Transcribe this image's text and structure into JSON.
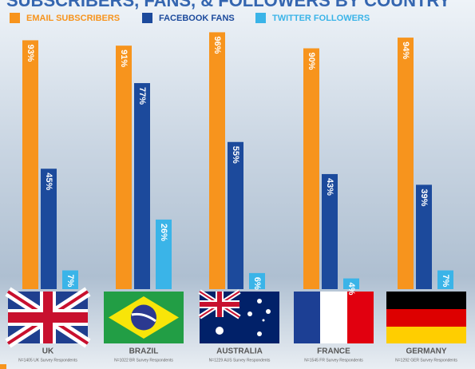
{
  "chart_data": {
    "type": "bar",
    "title": "SUBSCRIBERS, FANS, & FOLLOWERS BY COUNTRY",
    "categories": [
      "UK",
      "BRAZIL",
      "AUSTRALIA",
      "FRANCE",
      "GERMANY"
    ],
    "notes": [
      "N=1405 UK Survey Respondents",
      "N=1022 BR Survey Respondents",
      "N=1229 AUS Survey Respondents",
      "N=1545 FR Survey Respondents",
      "N=1292 GER Survey Respondents"
    ],
    "series": [
      {
        "name": "EMAIL SUBSCRIBERS",
        "color": "#f7941d",
        "values": [
          93,
          91,
          96,
          90,
          94
        ],
        "value_labels": [
          "93%",
          "91%",
          "96%",
          "90%",
          "94%"
        ]
      },
      {
        "name": "FACEBOOK FANS",
        "color": "#1c4a9c",
        "values": [
          45,
          77,
          55,
          43,
          39
        ],
        "value_labels": [
          "45%",
          "77%",
          "55%",
          "43%",
          "39%"
        ]
      },
      {
        "name": "TWITTER FOLLOWERS",
        "color": "#3ab4e8",
        "values": [
          7,
          26,
          6,
          4,
          7
        ],
        "value_labels": [
          "7%",
          "26%",
          "6%",
          "4%",
          "7%"
        ]
      }
    ],
    "ylim": [
      0,
      100
    ]
  }
}
